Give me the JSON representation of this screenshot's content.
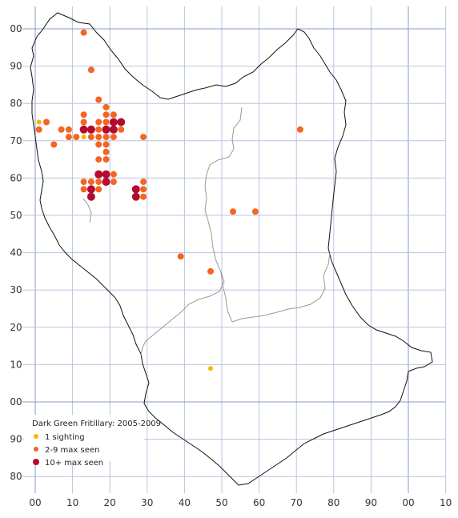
{
  "legend": {
    "title": "Dark Green Fritillary:  2005-2009",
    "items": [
      {
        "label": "1 sighting",
        "color": "#f5b800"
      },
      {
        "label": "2-9 max seen",
        "color": "#f26522"
      },
      {
        "label": "10+ max seen",
        "color": "#b5092f"
      }
    ]
  },
  "axes": {
    "x_labels": [
      "00",
      "10",
      "20",
      "30",
      "40",
      "50",
      "60",
      "70",
      "80",
      "90",
      "00",
      "10"
    ],
    "y_labels": [
      "00",
      "90",
      "80",
      "70",
      "60",
      "50",
      "40",
      "30",
      "20",
      "10",
      "00",
      "90",
      "80"
    ]
  },
  "colors": {
    "grid": "#b8c4e0",
    "grid_major": "#8a98c0",
    "boundary": "#111111",
    "inner_boundary": "#999999"
  },
  "sightings": [
    {
      "e": 1,
      "n": 75,
      "c": "1"
    },
    {
      "e": 13,
      "n": 71,
      "c": "1"
    },
    {
      "e": 47,
      "n": 9,
      "c": "1"
    },
    {
      "e": 13,
      "n": 99,
      "c": "2-9"
    },
    {
      "e": 15,
      "n": 89,
      "c": "2-9"
    },
    {
      "e": 17,
      "n": 81,
      "c": "2-9"
    },
    {
      "e": 19,
      "n": 79,
      "c": "2-9"
    },
    {
      "e": 19,
      "n": 77,
      "c": "2-9"
    },
    {
      "e": 21,
      "n": 77,
      "c": "2-9"
    },
    {
      "e": 1,
      "n": 73,
      "c": "2-9"
    },
    {
      "e": 3,
      "n": 75,
      "c": "2-9"
    },
    {
      "e": 7,
      "n": 73,
      "c": "2-9"
    },
    {
      "e": 9,
      "n": 73,
      "c": "2-9"
    },
    {
      "e": 5,
      "n": 69,
      "c": "2-9"
    },
    {
      "e": 9,
      "n": 71,
      "c": "2-9"
    },
    {
      "e": 11,
      "n": 71,
      "c": "2-9"
    },
    {
      "e": 13,
      "n": 77,
      "c": "2-9"
    },
    {
      "e": 13,
      "n": 75,
      "c": "2-9"
    },
    {
      "e": 15,
      "n": 71,
      "c": "2-9"
    },
    {
      "e": 17,
      "n": 75,
      "c": "2-9"
    },
    {
      "e": 17,
      "n": 73,
      "c": "2-9"
    },
    {
      "e": 17,
      "n": 71,
      "c": "2-9"
    },
    {
      "e": 17,
      "n": 69,
      "c": "2-9"
    },
    {
      "e": 19,
      "n": 75,
      "c": "2-9"
    },
    {
      "e": 19,
      "n": 71,
      "c": "2-9"
    },
    {
      "e": 19,
      "n": 69,
      "c": "2-9"
    },
    {
      "e": 21,
      "n": 71,
      "c": "2-9"
    },
    {
      "e": 23,
      "n": 73,
      "c": "2-9"
    },
    {
      "e": 29,
      "n": 71,
      "c": "2-9"
    },
    {
      "e": 19,
      "n": 67,
      "c": "2-9"
    },
    {
      "e": 17,
      "n": 65,
      "c": "2-9"
    },
    {
      "e": 19,
      "n": 65,
      "c": "2-9"
    },
    {
      "e": 21,
      "n": 61,
      "c": "2-9"
    },
    {
      "e": 13,
      "n": 59,
      "c": "2-9"
    },
    {
      "e": 15,
      "n": 59,
      "c": "2-9"
    },
    {
      "e": 17,
      "n": 59,
      "c": "2-9"
    },
    {
      "e": 21,
      "n": 59,
      "c": "2-9"
    },
    {
      "e": 13,
      "n": 57,
      "c": "2-9"
    },
    {
      "e": 17,
      "n": 57,
      "c": "2-9"
    },
    {
      "e": 29,
      "n": 59,
      "c": "2-9"
    },
    {
      "e": 29,
      "n": 57,
      "c": "2-9"
    },
    {
      "e": 29,
      "n": 55,
      "c": "2-9"
    },
    {
      "e": 71,
      "n": 73,
      "c": "2-9"
    },
    {
      "e": 53,
      "n": 51,
      "c": "2-9"
    },
    {
      "e": 59,
      "n": 51,
      "c": "2-9"
    },
    {
      "e": 39,
      "n": 39,
      "c": "2-9"
    },
    {
      "e": 47,
      "n": 35,
      "c": "2-9"
    },
    {
      "e": 13,
      "n": 73,
      "c": "10+"
    },
    {
      "e": 15,
      "n": 73,
      "c": "10+"
    },
    {
      "e": 19,
      "n": 73,
      "c": "10+"
    },
    {
      "e": 21,
      "n": 73,
      "c": "10+"
    },
    {
      "e": 21,
      "n": 75,
      "c": "10+"
    },
    {
      "e": 23,
      "n": 75,
      "c": "10+"
    },
    {
      "e": 17,
      "n": 61,
      "c": "10+"
    },
    {
      "e": 19,
      "n": 61,
      "c": "10+"
    },
    {
      "e": 19,
      "n": 59,
      "c": "10+"
    },
    {
      "e": 15,
      "n": 57,
      "c": "10+"
    },
    {
      "e": 15,
      "n": 55,
      "c": "10+"
    },
    {
      "e": 27,
      "n": 57,
      "c": "10+"
    },
    {
      "e": 27,
      "n": 55,
      "c": "10+"
    }
  ]
}
